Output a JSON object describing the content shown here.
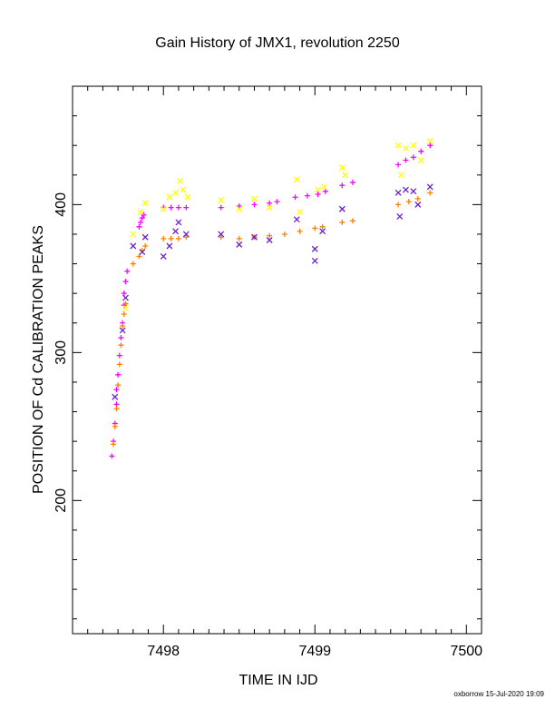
{
  "chart_data": {
    "type": "scatter",
    "title": "Gain History of JMX1, revolution 2250",
    "xlabel": "TIME IN IJD",
    "ylabel": "POSITION OF Cd CALIBRATION PEAKS",
    "xlim": [
      7497.4,
      7500.1
    ],
    "ylim": [
      110,
      480
    ],
    "x_ticks": [
      7498,
      7499,
      7500
    ],
    "y_ticks": [
      200,
      300,
      400
    ],
    "grid": false,
    "credit": "oxborrow 15-Jul-2020 19:09",
    "series": [
      {
        "marker": "plus",
        "color": "#ff00ff",
        "points": [
          [
            7497.66,
            230
          ],
          [
            7497.67,
            240
          ],
          [
            7497.68,
            252
          ],
          [
            7497.69,
            265
          ],
          [
            7497.69,
            275
          ],
          [
            7497.7,
            285
          ],
          [
            7497.71,
            298
          ],
          [
            7497.72,
            310
          ],
          [
            7497.73,
            320
          ],
          [
            7497.74,
            332
          ],
          [
            7497.74,
            340
          ],
          [
            7497.75,
            348
          ],
          [
            7497.76,
            355
          ],
          [
            7497.84,
            385
          ],
          [
            7497.85,
            388
          ],
          [
            7497.86,
            391
          ],
          [
            7497.87,
            393
          ],
          [
            7498.0,
            398
          ],
          [
            7498.05,
            398
          ],
          [
            7498.1,
            398
          ],
          [
            7498.15,
            398
          ],
          [
            7498.38,
            398
          ],
          [
            7498.5,
            399
          ],
          [
            7498.6,
            400
          ],
          [
            7498.7,
            401
          ],
          [
            7498.75,
            402
          ],
          [
            7498.87,
            405
          ],
          [
            7498.95,
            406
          ],
          [
            7499.02,
            407
          ],
          [
            7499.07,
            409
          ],
          [
            7499.18,
            413
          ],
          [
            7499.25,
            415
          ],
          [
            7499.55,
            427
          ],
          [
            7499.6,
            430
          ],
          [
            7499.65,
            432
          ],
          [
            7499.7,
            436
          ],
          [
            7499.76,
            440
          ]
        ]
      },
      {
        "marker": "plus",
        "color": "#ff8000",
        "points": [
          [
            7497.67,
            238
          ],
          [
            7497.68,
            250
          ],
          [
            7497.69,
            262
          ],
          [
            7497.7,
            278
          ],
          [
            7497.71,
            292
          ],
          [
            7497.72,
            305
          ],
          [
            7497.73,
            318
          ],
          [
            7497.74,
            326
          ],
          [
            7497.75,
            333
          ],
          [
            7497.8,
            360
          ],
          [
            7497.84,
            365
          ],
          [
            7497.86,
            369
          ],
          [
            7497.88,
            372
          ],
          [
            7498.0,
            377
          ],
          [
            7498.05,
            377
          ],
          [
            7498.1,
            377
          ],
          [
            7498.15,
            378
          ],
          [
            7498.38,
            378
          ],
          [
            7498.5,
            377
          ],
          [
            7498.6,
            378
          ],
          [
            7498.7,
            379
          ],
          [
            7498.8,
            380
          ],
          [
            7498.9,
            382
          ],
          [
            7499.0,
            384
          ],
          [
            7499.05,
            385
          ],
          [
            7499.18,
            388
          ],
          [
            7499.25,
            389
          ],
          [
            7499.55,
            400
          ],
          [
            7499.62,
            402
          ],
          [
            7499.68,
            404
          ],
          [
            7499.76,
            408
          ]
        ]
      },
      {
        "marker": "cross",
        "color": "#ffff00",
        "points": [
          [
            7497.75,
            330
          ],
          [
            7497.8,
            380
          ],
          [
            7497.85,
            395
          ],
          [
            7497.88,
            401
          ],
          [
            7498.0,
            397
          ],
          [
            7498.04,
            405
          ],
          [
            7498.08,
            408
          ],
          [
            7498.11,
            416
          ],
          [
            7498.13,
            410
          ],
          [
            7498.16,
            405
          ],
          [
            7498.38,
            403
          ],
          [
            7498.5,
            397
          ],
          [
            7498.6,
            404
          ],
          [
            7498.7,
            398
          ],
          [
            7498.88,
            417
          ],
          [
            7498.9,
            395
          ],
          [
            7499.02,
            410
          ],
          [
            7499.06,
            412
          ],
          [
            7499.18,
            425
          ],
          [
            7499.2,
            420
          ],
          [
            7499.55,
            440
          ],
          [
            7499.57,
            420
          ],
          [
            7499.6,
            438
          ],
          [
            7499.65,
            440
          ],
          [
            7499.7,
            430
          ],
          [
            7499.76,
            443
          ]
        ]
      },
      {
        "marker": "cross",
        "color": "#6a1fcf",
        "points": [
          [
            7497.68,
            270
          ],
          [
            7497.73,
            315
          ],
          [
            7497.75,
            337
          ],
          [
            7497.8,
            372
          ],
          [
            7497.86,
            368
          ],
          [
            7497.88,
            378
          ],
          [
            7498.0,
            365
          ],
          [
            7498.04,
            372
          ],
          [
            7498.08,
            382
          ],
          [
            7498.1,
            388
          ],
          [
            7498.15,
            380
          ],
          [
            7498.38,
            380
          ],
          [
            7498.5,
            373
          ],
          [
            7498.6,
            378
          ],
          [
            7498.7,
            376
          ],
          [
            7498.88,
            390
          ],
          [
            7499.0,
            370
          ],
          [
            7499.0,
            362
          ],
          [
            7499.05,
            382
          ],
          [
            7499.18,
            397
          ],
          [
            7499.55,
            408
          ],
          [
            7499.56,
            392
          ],
          [
            7499.6,
            410
          ],
          [
            7499.65,
            409
          ],
          [
            7499.68,
            400
          ],
          [
            7499.76,
            412
          ]
        ]
      }
    ]
  }
}
